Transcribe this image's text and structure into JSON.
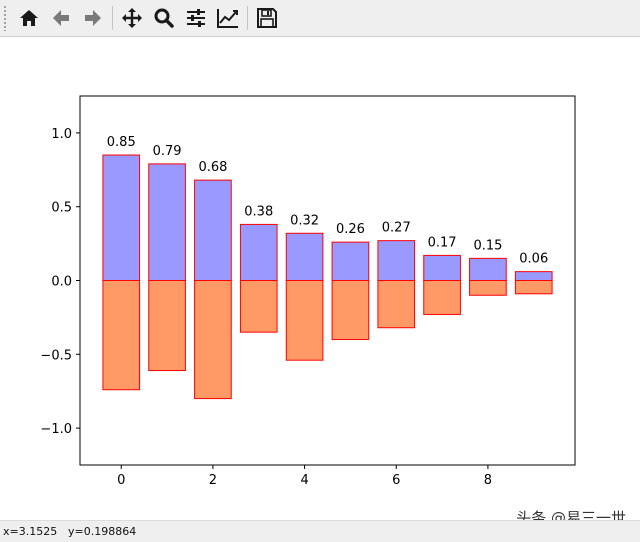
{
  "toolbar": {
    "buttons": [
      {
        "name": "home-button",
        "icon": "home-icon"
      },
      {
        "name": "back-button",
        "icon": "arrow-left-icon"
      },
      {
        "name": "forward-button",
        "icon": "arrow-right-icon"
      },
      {
        "name": "pan-button",
        "icon": "move-icon"
      },
      {
        "name": "zoom-button",
        "icon": "magnifier-icon"
      },
      {
        "name": "configure-subplots-button",
        "icon": "sliders-icon"
      },
      {
        "name": "edit-axis-button",
        "icon": "line-chart-icon"
      },
      {
        "name": "save-button",
        "icon": "floppy-disk-icon"
      }
    ]
  },
  "status": {
    "x_readout": "x=3.1525",
    "y_readout": "y=0.198864"
  },
  "watermark": "头条 @易三一世",
  "colors": {
    "positive_fill": "#9999ff",
    "negative_fill": "#ff9966",
    "bar_edge": "#ff0000"
  },
  "chart_data": {
    "type": "bar",
    "stacked_diverging": true,
    "x": [
      0,
      1,
      2,
      3,
      4,
      5,
      6,
      7,
      8,
      9
    ],
    "series": [
      {
        "values": [
          0.85,
          0.79,
          0.68,
          0.38,
          0.32,
          0.26,
          0.27,
          0.17,
          0.15,
          0.06
        ]
      },
      {
        "values": [
          -0.74,
          -0.61,
          -0.8,
          -0.35,
          -0.54,
          -0.4,
          -0.32,
          -0.23,
          -0.1,
          -0.09
        ]
      }
    ],
    "data_labels": [
      "0.85",
      "0.79",
      "0.68",
      "0.38",
      "0.32",
      "0.26",
      "0.27",
      "0.17",
      "0.15",
      "0.06"
    ],
    "xlim": [
      -0.9,
      9.9
    ],
    "ylim": [
      -1.25,
      1.25
    ],
    "xticks": [
      "0",
      "2",
      "4",
      "6",
      "8"
    ],
    "yticks": [
      "−1.0",
      "−0.5",
      "0.0",
      "0.5",
      "1.0"
    ],
    "title": "",
    "xlabel": "",
    "ylabel": "",
    "grid": false
  }
}
